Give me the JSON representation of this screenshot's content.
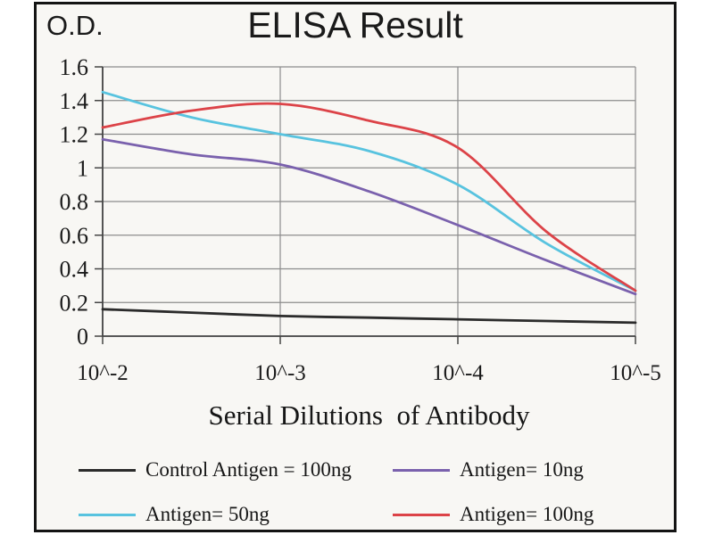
{
  "figure": {
    "frame_border_color": "#141414",
    "frame_background": "#f8f7f4"
  },
  "chart_data": {
    "type": "line",
    "title": "ELISA Result",
    "ylabel": "O.D.",
    "xlabel": "Serial Dilutions  of Antibody",
    "x_scale": "log",
    "x_tick_labels": [
      "10^-2",
      "10^-3",
      "10^-4",
      "10^-5"
    ],
    "y_tick_labels": [
      "0",
      "0.2",
      "0.4",
      "0.6",
      "0.8",
      "1",
      "1.2",
      "1.4",
      "1.6"
    ],
    "ylim": [
      0,
      1.6
    ],
    "grid": true,
    "legend_position": "below",
    "sample_positions": [
      0,
      0.5,
      1,
      1.5,
      2,
      2.5,
      3
    ],
    "series": [
      {
        "name": "Control Antigen = 100ng",
        "color": "#2b2b2b",
        "values": [
          0.16,
          0.14,
          0.12,
          0.11,
          0.1,
          0.09,
          0.08
        ]
      },
      {
        "name": "Antigen= 10ng",
        "color": "#7a61ad",
        "values": [
          1.17,
          1.08,
          1.02,
          0.86,
          0.66,
          0.45,
          0.25
        ]
      },
      {
        "name": "Antigen= 50ng",
        "color": "#58c3df",
        "values": [
          1.45,
          1.3,
          1.2,
          1.1,
          0.9,
          0.55,
          0.27
        ]
      },
      {
        "name": "Antigen= 100ng",
        "color": "#dc4348",
        "values": [
          1.24,
          1.34,
          1.38,
          1.28,
          1.12,
          0.62,
          0.27
        ]
      }
    ],
    "legend_rows": [
      [
        0,
        1
      ],
      [
        2,
        3
      ]
    ]
  }
}
